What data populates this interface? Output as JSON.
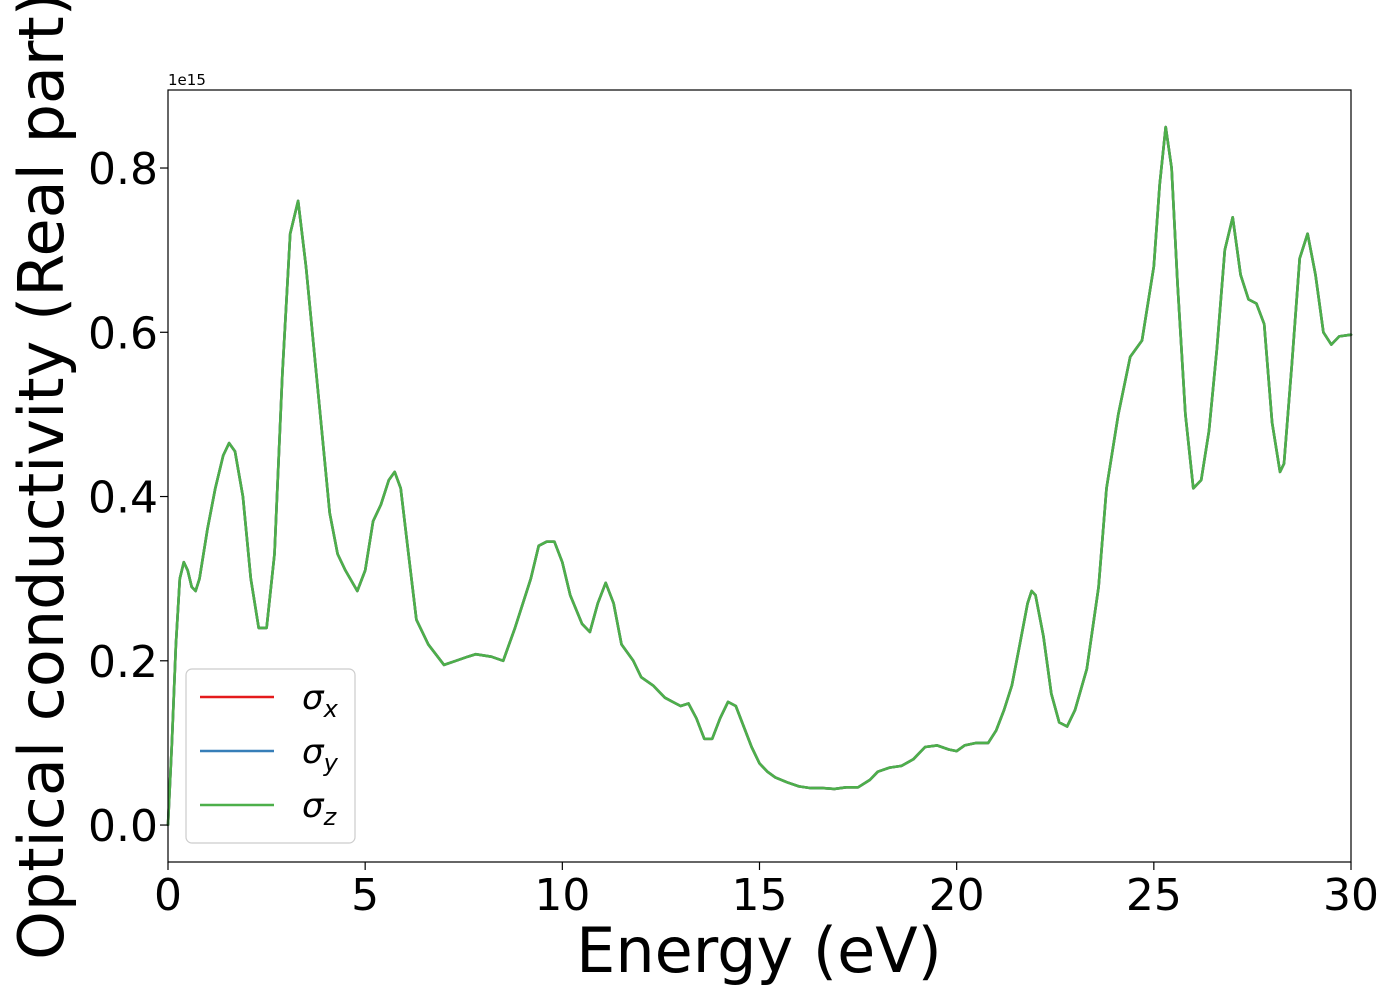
{
  "chart_data": {
    "type": "line",
    "xlabel": "Energy (eV)",
    "ylabel": "Optical conductivity (Real part)",
    "y_offset_label": "1e15",
    "xlim": [
      0,
      30
    ],
    "ylim": [
      -0.045,
      0.895
    ],
    "x_ticks": [
      0,
      5,
      10,
      15,
      20,
      25,
      30
    ],
    "x_tick_labels": [
      "0",
      "5",
      "10",
      "15",
      "20",
      "25",
      "30"
    ],
    "y_ticks": [
      0.0,
      0.2,
      0.4,
      0.6,
      0.8
    ],
    "y_tick_labels": [
      "0.0",
      "0.2",
      "0.4",
      "0.6",
      "0.8"
    ],
    "grid": false,
    "legend_position": "lower-left",
    "colors": {
      "sigma_x": "#e41a1c",
      "sigma_y": "#377eb8",
      "sigma_z": "#4daf4a"
    },
    "legend": [
      {
        "symbol": "σ",
        "sub": "x",
        "color": "#e41a1c"
      },
      {
        "symbol": "σ",
        "sub": "y",
        "color": "#377eb8"
      },
      {
        "symbol": "σ",
        "sub": "z",
        "color": "#4daf4a"
      }
    ],
    "x": [
      0.0,
      0.1,
      0.2,
      0.3,
      0.4,
      0.5,
      0.6,
      0.7,
      0.8,
      1.0,
      1.2,
      1.4,
      1.55,
      1.7,
      1.9,
      2.1,
      2.3,
      2.5,
      2.7,
      2.9,
      3.1,
      3.3,
      3.5,
      3.7,
      3.9,
      4.1,
      4.3,
      4.5,
      4.8,
      5.0,
      5.2,
      5.4,
      5.6,
      5.75,
      5.9,
      6.1,
      6.3,
      6.6,
      7.0,
      7.3,
      7.6,
      7.8,
      8.2,
      8.5,
      8.8,
      9.0,
      9.2,
      9.4,
      9.6,
      9.8,
      10.0,
      10.2,
      10.5,
      10.7,
      10.9,
      11.1,
      11.3,
      11.5,
      11.8,
      12.0,
      12.3,
      12.6,
      12.8,
      13.0,
      13.2,
      13.4,
      13.6,
      13.8,
      14.0,
      14.2,
      14.4,
      14.6,
      14.8,
      15.0,
      15.2,
      15.4,
      15.7,
      16.0,
      16.3,
      16.6,
      16.9,
      17.2,
      17.5,
      17.8,
      18.0,
      18.3,
      18.6,
      18.9,
      19.2,
      19.5,
      19.8,
      20.0,
      20.2,
      20.5,
      20.8,
      21.0,
      21.2,
      21.4,
      21.6,
      21.8,
      21.9,
      22.0,
      22.2,
      22.4,
      22.6,
      22.8,
      23.0,
      23.3,
      23.6,
      23.8,
      24.1,
      24.4,
      24.7,
      25.0,
      25.15,
      25.3,
      25.45,
      25.6,
      25.8,
      26.0,
      26.2,
      26.4,
      26.6,
      26.8,
      27.0,
      27.2,
      27.4,
      27.6,
      27.8,
      28.0,
      28.2,
      28.3,
      28.5,
      28.7,
      28.9,
      29.1,
      29.3,
      29.5,
      29.7,
      30.0
    ],
    "series": [
      {
        "name": "σx",
        "color": "#e41a1c",
        "values": [
          0.0,
          0.1,
          0.22,
          0.3,
          0.32,
          0.31,
          0.29,
          0.285,
          0.3,
          0.36,
          0.41,
          0.45,
          0.465,
          0.455,
          0.4,
          0.3,
          0.24,
          0.24,
          0.33,
          0.55,
          0.72,
          0.76,
          0.68,
          0.58,
          0.48,
          0.38,
          0.33,
          0.31,
          0.285,
          0.31,
          0.37,
          0.39,
          0.42,
          0.43,
          0.41,
          0.33,
          0.25,
          0.22,
          0.195,
          0.2,
          0.205,
          0.208,
          0.205,
          0.2,
          0.24,
          0.27,
          0.3,
          0.34,
          0.345,
          0.345,
          0.32,
          0.28,
          0.245,
          0.235,
          0.27,
          0.295,
          0.27,
          0.22,
          0.2,
          0.18,
          0.17,
          0.155,
          0.15,
          0.145,
          0.148,
          0.13,
          0.105,
          0.105,
          0.13,
          0.15,
          0.145,
          0.12,
          0.095,
          0.075,
          0.065,
          0.058,
          0.052,
          0.047,
          0.045,
          0.045,
          0.044,
          0.046,
          0.046,
          0.055,
          0.065,
          0.07,
          0.072,
          0.08,
          0.095,
          0.097,
          0.092,
          0.09,
          0.097,
          0.1,
          0.1,
          0.115,
          0.14,
          0.17,
          0.22,
          0.27,
          0.285,
          0.28,
          0.23,
          0.16,
          0.125,
          0.12,
          0.14,
          0.19,
          0.29,
          0.41,
          0.5,
          0.57,
          0.59,
          0.68,
          0.78,
          0.85,
          0.8,
          0.66,
          0.5,
          0.41,
          0.42,
          0.48,
          0.58,
          0.7,
          0.74,
          0.67,
          0.64,
          0.635,
          0.61,
          0.49,
          0.43,
          0.44,
          0.56,
          0.69,
          0.72,
          0.67,
          0.6,
          0.585,
          0.595,
          0.597
        ]
      },
      {
        "name": "σy",
        "color": "#377eb8",
        "values": [
          0.0,
          0.1,
          0.22,
          0.3,
          0.32,
          0.31,
          0.29,
          0.285,
          0.3,
          0.36,
          0.41,
          0.45,
          0.465,
          0.455,
          0.4,
          0.3,
          0.24,
          0.24,
          0.33,
          0.55,
          0.72,
          0.76,
          0.68,
          0.58,
          0.48,
          0.38,
          0.33,
          0.31,
          0.285,
          0.31,
          0.37,
          0.39,
          0.42,
          0.43,
          0.41,
          0.33,
          0.25,
          0.22,
          0.195,
          0.2,
          0.205,
          0.208,
          0.205,
          0.2,
          0.24,
          0.27,
          0.3,
          0.34,
          0.345,
          0.345,
          0.32,
          0.28,
          0.245,
          0.235,
          0.27,
          0.295,
          0.27,
          0.22,
          0.2,
          0.18,
          0.17,
          0.155,
          0.15,
          0.145,
          0.148,
          0.13,
          0.105,
          0.105,
          0.13,
          0.15,
          0.145,
          0.12,
          0.095,
          0.075,
          0.065,
          0.058,
          0.052,
          0.047,
          0.045,
          0.045,
          0.044,
          0.046,
          0.046,
          0.055,
          0.065,
          0.07,
          0.072,
          0.08,
          0.095,
          0.097,
          0.092,
          0.09,
          0.097,
          0.1,
          0.1,
          0.115,
          0.14,
          0.17,
          0.22,
          0.27,
          0.285,
          0.28,
          0.23,
          0.16,
          0.125,
          0.12,
          0.14,
          0.19,
          0.29,
          0.41,
          0.5,
          0.57,
          0.59,
          0.68,
          0.78,
          0.85,
          0.8,
          0.66,
          0.5,
          0.41,
          0.42,
          0.48,
          0.58,
          0.7,
          0.74,
          0.67,
          0.64,
          0.635,
          0.61,
          0.49,
          0.43,
          0.44,
          0.56,
          0.69,
          0.72,
          0.67,
          0.6,
          0.585,
          0.595,
          0.597
        ]
      },
      {
        "name": "σz",
        "color": "#4daf4a",
        "values": [
          0.0,
          0.1,
          0.22,
          0.3,
          0.32,
          0.31,
          0.29,
          0.285,
          0.3,
          0.36,
          0.41,
          0.45,
          0.465,
          0.455,
          0.4,
          0.3,
          0.24,
          0.24,
          0.33,
          0.55,
          0.72,
          0.76,
          0.68,
          0.58,
          0.48,
          0.38,
          0.33,
          0.31,
          0.285,
          0.31,
          0.37,
          0.39,
          0.42,
          0.43,
          0.41,
          0.33,
          0.25,
          0.22,
          0.195,
          0.2,
          0.205,
          0.208,
          0.205,
          0.2,
          0.24,
          0.27,
          0.3,
          0.34,
          0.345,
          0.345,
          0.32,
          0.28,
          0.245,
          0.235,
          0.27,
          0.295,
          0.27,
          0.22,
          0.2,
          0.18,
          0.17,
          0.155,
          0.15,
          0.145,
          0.148,
          0.13,
          0.105,
          0.105,
          0.13,
          0.15,
          0.145,
          0.12,
          0.095,
          0.075,
          0.065,
          0.058,
          0.052,
          0.047,
          0.045,
          0.045,
          0.044,
          0.046,
          0.046,
          0.055,
          0.065,
          0.07,
          0.072,
          0.08,
          0.095,
          0.097,
          0.092,
          0.09,
          0.097,
          0.1,
          0.1,
          0.115,
          0.14,
          0.17,
          0.22,
          0.27,
          0.285,
          0.28,
          0.23,
          0.16,
          0.125,
          0.12,
          0.14,
          0.19,
          0.29,
          0.41,
          0.5,
          0.57,
          0.59,
          0.68,
          0.78,
          0.85,
          0.8,
          0.66,
          0.5,
          0.41,
          0.42,
          0.48,
          0.58,
          0.7,
          0.74,
          0.67,
          0.64,
          0.635,
          0.61,
          0.49,
          0.43,
          0.44,
          0.56,
          0.69,
          0.72,
          0.67,
          0.6,
          0.585,
          0.595,
          0.597
        ]
      }
    ]
  }
}
